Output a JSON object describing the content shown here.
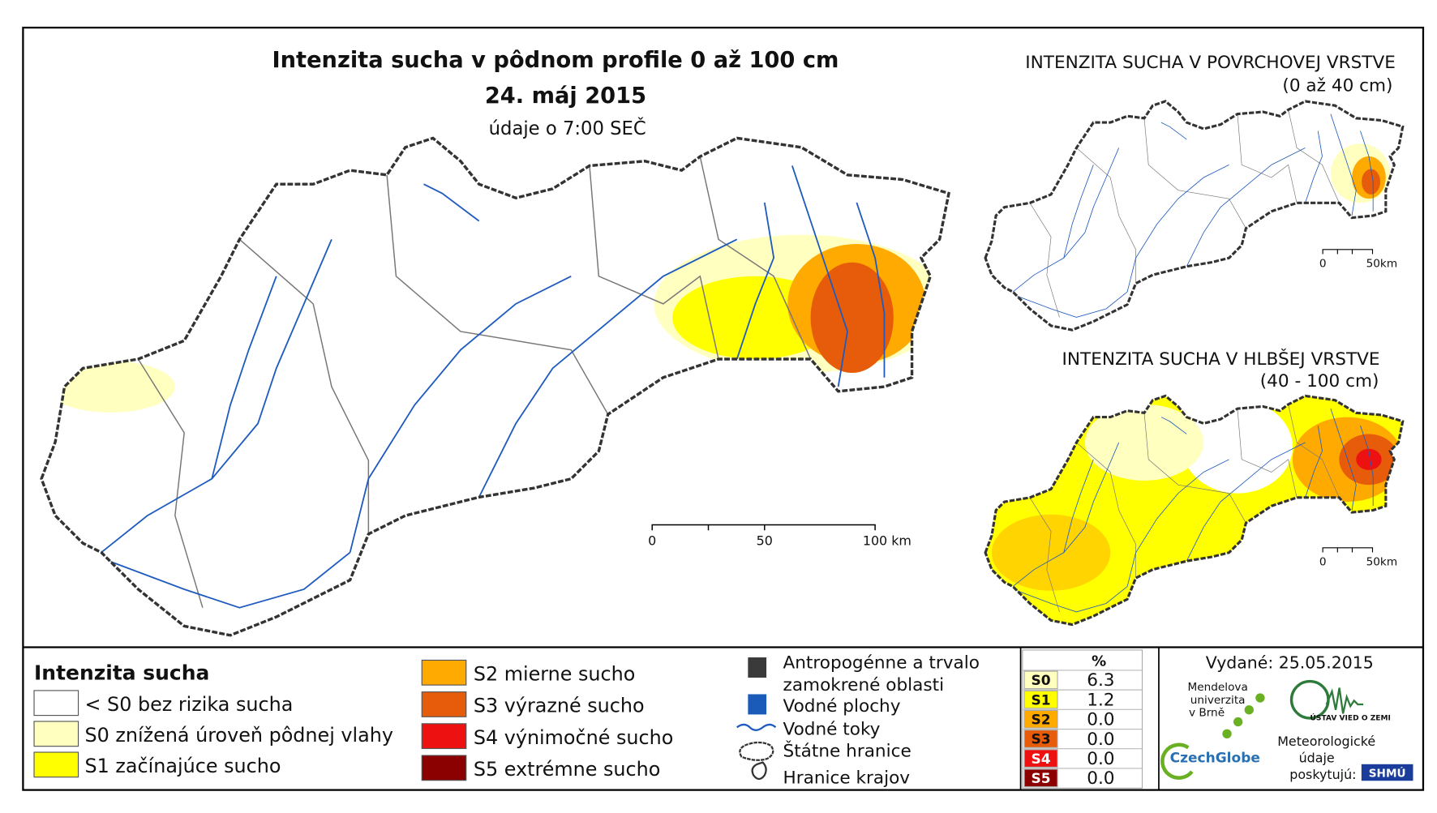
{
  "title": "Intenzita sucha v pôdnom profile 0 až 100 cm",
  "date": "24. máj 2015",
  "time_note": "údaje o 7:00 SEČ",
  "main_scale": [
    "0",
    "50",
    "100 km"
  ],
  "insets": [
    {
      "title": "INTENZITA SUCHA V POVRCHOVEJ VRSTVE",
      "subtitle": "(0 až 40 cm)",
      "scale": [
        "0",
        "50km"
      ]
    },
    {
      "title": "INTENZITA SUCHA V HLBŠEJ VRSTVE",
      "subtitle": "(40 - 100 cm)",
      "scale": [
        "0",
        "50km"
      ]
    }
  ],
  "legend": {
    "title": "Intenzita sucha",
    "classes": [
      {
        "label": "< S0 bez rizika sucha",
        "color": "#ffffff"
      },
      {
        "label": "S0 znížená úroveň pôdnej vlahy",
        "color": "#ffffc0"
      },
      {
        "label": "S1 začínajúce sucho",
        "color": "#ffff00"
      },
      {
        "label": "S2 mierne sucho",
        "color": "#ffaa00"
      },
      {
        "label": "S3 výrazné sucho",
        "color": "#e65c0a"
      },
      {
        "label": "S4 výnimočné sucho",
        "color": "#ee1111"
      },
      {
        "label": "S5 extrémne sucho",
        "color": "#8b0000"
      }
    ],
    "layers": [
      {
        "label": [
          "Antropogénne a trvalo",
          "zamokrené oblasti"
        ]
      },
      {
        "label": [
          "Vodné plochy"
        ]
      },
      {
        "label": [
          "Vodné toky"
        ]
      },
      {
        "label": [
          "Štátne hranice"
        ]
      },
      {
        "label": [
          "Hranice krajov"
        ]
      }
    ]
  },
  "table": {
    "header": "%",
    "rows": [
      [
        "S0",
        "6.3"
      ],
      [
        "S1",
        "1.2"
      ],
      [
        "S2",
        "0.0"
      ],
      [
        "S3",
        "0.0"
      ],
      [
        "S4",
        "0.0"
      ],
      [
        "S5",
        "0.0"
      ]
    ]
  },
  "issued": "Vydané: 25.05.2015",
  "logos": {
    "mendel": [
      "Mendelova",
      "univerzita",
      "v Brně"
    ],
    "czechglobe": "CzechGlobe",
    "uvgz": "ÚSTAV VIED O ZEMI",
    "meteo": [
      "Meteorologické",
      "údaje",
      "poskytujú:"
    ],
    "shmu": "SHMÚ"
  }
}
